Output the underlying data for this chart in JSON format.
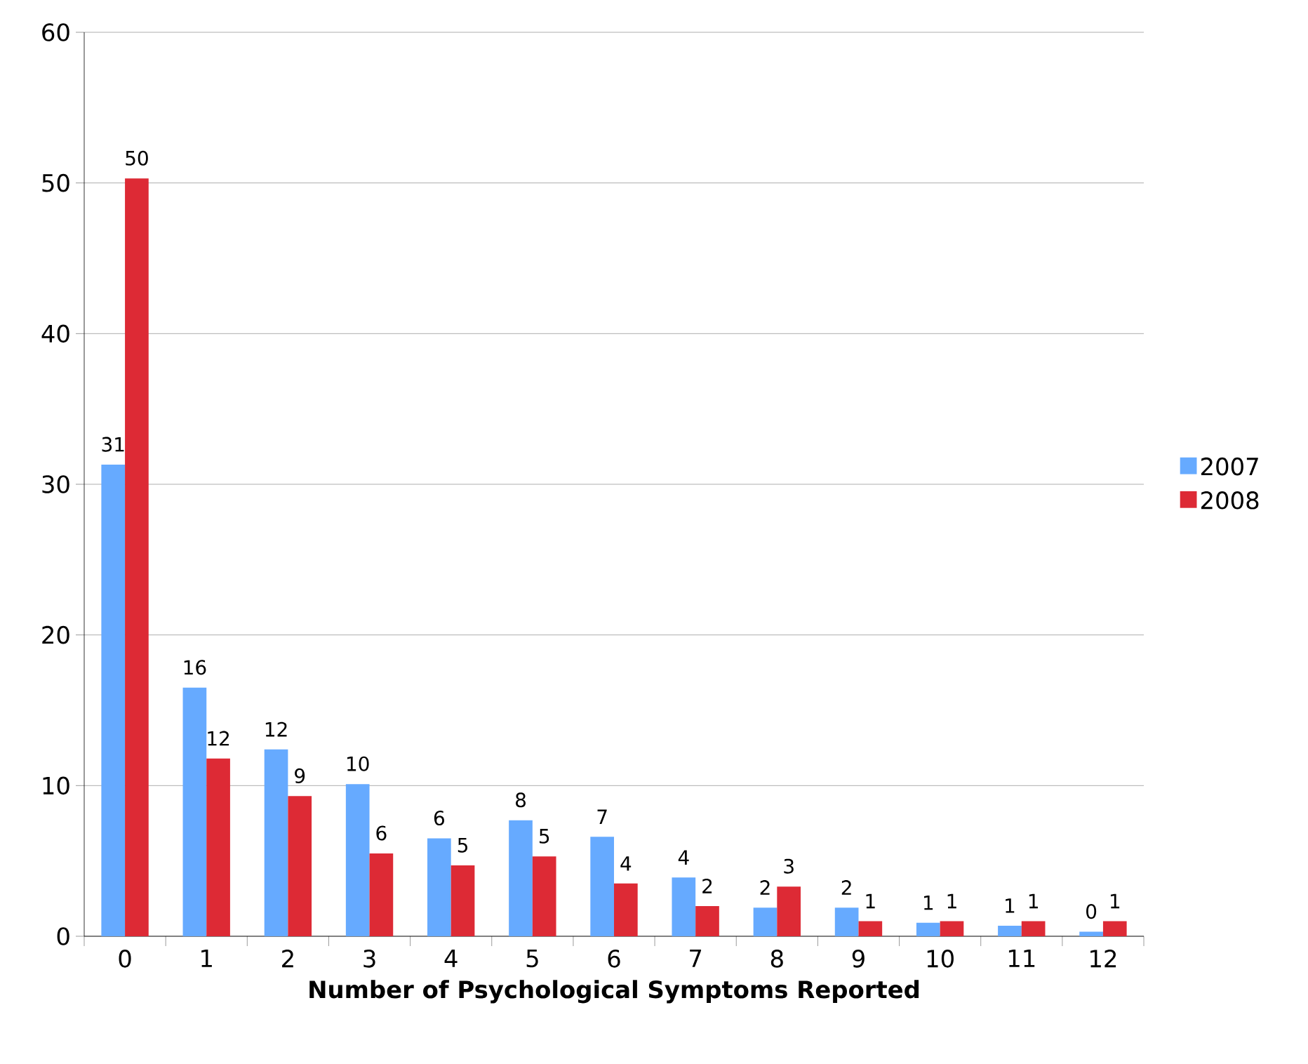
{
  "chart_data": {
    "type": "bar",
    "xlabel": "Number of Psychological Symptoms Reported",
    "categories": [
      "0",
      "1",
      "2",
      "3",
      "4",
      "5",
      "6",
      "7",
      "8",
      "9",
      "10",
      "11",
      "12"
    ],
    "series": [
      {
        "name": "2007",
        "color": "#66aaff",
        "values": [
          31.3,
          16.5,
          12.4,
          10.1,
          6.5,
          7.7,
          6.6,
          3.9,
          1.9,
          1.9,
          0.9,
          0.7,
          0.3
        ],
        "value_labels": [
          "31",
          "16",
          "12",
          "10",
          "6",
          "8",
          "7",
          "4",
          "2",
          "2",
          "1",
          "1",
          "0"
        ]
      },
      {
        "name": "2008",
        "color": "#dd2a35",
        "values": [
          50.3,
          11.8,
          9.3,
          5.5,
          4.7,
          5.3,
          3.5,
          2.0,
          3.3,
          1.0,
          1.0,
          1.0,
          1.0
        ],
        "value_labels": [
          "50",
          "12",
          "9",
          "6",
          "5",
          "5",
          "4",
          "2",
          "3",
          "1",
          "1",
          "1",
          "1"
        ]
      }
    ],
    "ylim": [
      0,
      60
    ],
    "yticks": [
      0,
      10,
      20,
      30,
      40,
      50,
      60
    ],
    "grid": "y",
    "legend": "right"
  }
}
